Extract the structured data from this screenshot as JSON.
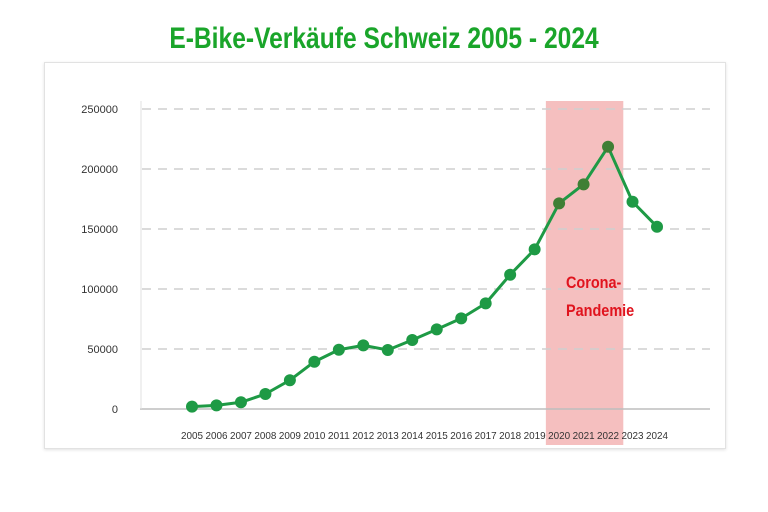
{
  "chart_data": {
    "type": "line",
    "title": "E-Bike-Verkäufe Schweiz 2005 - 2024",
    "xlabel": "",
    "ylabel": "",
    "ylim": [
      0,
      250000
    ],
    "yticks": [
      "0",
      "50000",
      "100000",
      "150000",
      "200000",
      "250000"
    ],
    "grid": true,
    "categories": [
      "2005",
      "2006",
      "2007",
      "2008",
      "2009",
      "2010",
      "2011",
      "2012",
      "2013",
      "2014",
      "2015",
      "2016",
      "2017",
      "2018",
      "2019",
      "2020",
      "2021",
      "2022",
      "2023",
      "2024"
    ],
    "series": [
      {
        "name": "E-Bike-Verkäufe",
        "color": "#1e9a45",
        "values": [
          2000,
          3000,
          5600,
          12500,
          24000,
          39400,
          49400,
          53000,
          49200,
          57500,
          66400,
          75500,
          88000,
          111900,
          133000,
          171400,
          187200,
          218500,
          172700,
          151900
        ]
      }
    ],
    "annotation": {
      "label_line1": "Corona-",
      "label_line2": "Pandemie",
      "range": [
        "2020",
        "2022"
      ],
      "color": "#f4b8b8",
      "text_color": "#e0141e"
    }
  }
}
